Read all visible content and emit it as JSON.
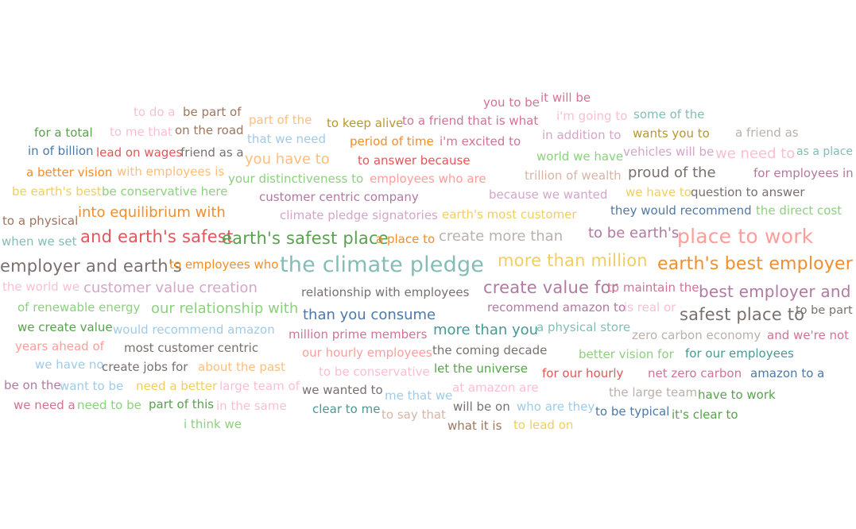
{
  "chart_data": {
    "type": "wordcloud",
    "title": "",
    "palette": {
      "blue": "#4e79a7",
      "lightblue": "#a0cbe8",
      "orange": "#f28e2b",
      "lightorange": "#ffbe7d",
      "green": "#59a14f",
      "lightgreen": "#8cd17d",
      "gold": "#b6992d",
      "yellow": "#f1ce63",
      "teal": "#499894",
      "lightteal": "#86bcb6",
      "red": "#e15759",
      "pink": "#ff9d9a",
      "gray": "#79706e",
      "lightgray": "#bab0ac",
      "rose": "#d37295",
      "lightrose": "#fabfd2",
      "purple": "#b07aa1",
      "lavender": "#d4a6c8",
      "brown": "#9d7660",
      "tan": "#d7b5a6"
    },
    "words": [
      {
        "text": "you to be",
        "weight": 1,
        "color": "rose"
      },
      {
        "text": "it will be",
        "weight": 1,
        "color": "rose"
      },
      {
        "text": "to do a",
        "weight": 1,
        "color": "lightrose"
      },
      {
        "text": "be part of",
        "weight": 1,
        "color": "brown"
      },
      {
        "text": "part of the",
        "weight": 1,
        "color": "lightorange"
      },
      {
        "text": "to keep alive",
        "weight": 1,
        "color": "gold"
      },
      {
        "text": "to a friend that is what",
        "weight": 1,
        "color": "rose"
      },
      {
        "text": "i'm going to",
        "weight": 1,
        "color": "lightrose"
      },
      {
        "text": "some of the",
        "weight": 1,
        "color": "lightteal"
      },
      {
        "text": "for a total",
        "weight": 1,
        "color": "green"
      },
      {
        "text": "to me that",
        "weight": 1,
        "color": "lightrose"
      },
      {
        "text": "on the road",
        "weight": 1,
        "color": "brown"
      },
      {
        "text": "that we need",
        "weight": 1,
        "color": "lightblue"
      },
      {
        "text": "period of time",
        "weight": 1,
        "color": "orange"
      },
      {
        "text": "i'm excited to",
        "weight": 1,
        "color": "rose"
      },
      {
        "text": "in addition to",
        "weight": 1,
        "color": "lavender"
      },
      {
        "text": "wants you to",
        "weight": 1,
        "color": "gold"
      },
      {
        "text": "a friend as",
        "weight": 1,
        "color": "lightgray"
      },
      {
        "text": "in of billion",
        "weight": 1,
        "color": "blue"
      },
      {
        "text": "lead on wages",
        "weight": 1,
        "color": "red"
      },
      {
        "text": "friend as a",
        "weight": 1,
        "color": "gray"
      },
      {
        "text": "you have to",
        "weight": 2,
        "color": "lightorange"
      },
      {
        "text": "to answer because",
        "weight": 1,
        "color": "red"
      },
      {
        "text": "world we have",
        "weight": 1,
        "color": "lightgreen"
      },
      {
        "text": "vehicles will be",
        "weight": 1,
        "color": "lavender"
      },
      {
        "text": "we need to",
        "weight": 2,
        "color": "lightrose"
      },
      {
        "text": "as a place",
        "weight": 1,
        "color": "lightteal"
      },
      {
        "text": "a better vision",
        "weight": 1,
        "color": "orange"
      },
      {
        "text": "with employees is",
        "weight": 1,
        "color": "lightorange"
      },
      {
        "text": "your distinctiveness to",
        "weight": 1,
        "color": "lightgreen"
      },
      {
        "text": "employees who are",
        "weight": 1,
        "color": "pink"
      },
      {
        "text": "trillion of wealth",
        "weight": 1,
        "color": "tan"
      },
      {
        "text": "proud of the",
        "weight": 2,
        "color": "gray"
      },
      {
        "text": "for employees in",
        "weight": 1,
        "color": "purple"
      },
      {
        "text": "be earth's best",
        "weight": 1,
        "color": "yellow"
      },
      {
        "text": "be conservative here",
        "weight": 1,
        "color": "lightgreen"
      },
      {
        "text": "customer centric company",
        "weight": 1,
        "color": "purple"
      },
      {
        "text": "because we wanted",
        "weight": 1,
        "color": "lavender"
      },
      {
        "text": "we have to",
        "weight": 1,
        "color": "yellow"
      },
      {
        "text": "question to answer",
        "weight": 1,
        "color": "gray"
      },
      {
        "text": "to a physical",
        "weight": 1,
        "color": "brown"
      },
      {
        "text": "into equilibrium with",
        "weight": 2,
        "color": "orange"
      },
      {
        "text": "climate pledge signatories",
        "weight": 1,
        "color": "lavender"
      },
      {
        "text": "earth's most customer",
        "weight": 1,
        "color": "yellow"
      },
      {
        "text": "they would recommend",
        "weight": 1,
        "color": "blue"
      },
      {
        "text": "the direct cost",
        "weight": 1,
        "color": "lightgreen"
      },
      {
        "text": "when we set",
        "weight": 1,
        "color": "lightteal"
      },
      {
        "text": "and earth's safest",
        "weight": 3,
        "color": "red"
      },
      {
        "text": "earth's safest place",
        "weight": 3,
        "color": "green"
      },
      {
        "text": "a place to",
        "weight": 1,
        "color": "orange"
      },
      {
        "text": "create more than",
        "weight": 2,
        "color": "lightgray"
      },
      {
        "text": "to be earth's",
        "weight": 2,
        "color": "purple"
      },
      {
        "text": "place to work",
        "weight": 4,
        "color": "pink"
      },
      {
        "text": "employer and earth's",
        "weight": 3,
        "color": "gray"
      },
      {
        "text": "to employees who",
        "weight": 1,
        "color": "orange"
      },
      {
        "text": "the climate pledge",
        "weight": 5,
        "color": "lightteal"
      },
      {
        "text": "more than million",
        "weight": 3,
        "color": "yellow"
      },
      {
        "text": "earth's best employer",
        "weight": 4,
        "color": "orange"
      },
      {
        "text": "the world we",
        "weight": 1,
        "color": "lightrose"
      },
      {
        "text": "customer value creation",
        "weight": 2,
        "color": "lavender"
      },
      {
        "text": "relationship with employees",
        "weight": 1,
        "color": "gray"
      },
      {
        "text": "create value for",
        "weight": 3,
        "color": "purple"
      },
      {
        "text": "to maintain the",
        "weight": 1,
        "color": "rose"
      },
      {
        "text": "best employer and",
        "weight": 3,
        "color": "purple"
      },
      {
        "text": "of renewable energy",
        "weight": 1,
        "color": "lightgreen"
      },
      {
        "text": "our relationship with",
        "weight": 2,
        "color": "lightgreen"
      },
      {
        "text": "than you consume",
        "weight": 2,
        "color": "blue"
      },
      {
        "text": "recommend amazon to",
        "weight": 1,
        "color": "purple"
      },
      {
        "text": "is real or",
        "weight": 1,
        "color": "lightrose"
      },
      {
        "text": "safest place to",
        "weight": 3,
        "color": "gray"
      },
      {
        "text": "to be part",
        "weight": 1,
        "color": "gray"
      },
      {
        "text": "we create value",
        "weight": 1,
        "color": "green"
      },
      {
        "text": "would recommend amazon",
        "weight": 1,
        "color": "lightblue"
      },
      {
        "text": "million prime members",
        "weight": 1,
        "color": "rose"
      },
      {
        "text": "more than you",
        "weight": 2,
        "color": "teal"
      },
      {
        "text": "a physical store",
        "weight": 1,
        "color": "lightteal"
      },
      {
        "text": "zero carbon economy",
        "weight": 1,
        "color": "lightgray"
      },
      {
        "text": "and we're not",
        "weight": 1,
        "color": "rose"
      },
      {
        "text": "years ahead of",
        "weight": 1,
        "color": "pink"
      },
      {
        "text": "most customer centric",
        "weight": 1,
        "color": "gray"
      },
      {
        "text": "our hourly employees",
        "weight": 1,
        "color": "pink"
      },
      {
        "text": "the coming decade",
        "weight": 1,
        "color": "gray"
      },
      {
        "text": "better vision for",
        "weight": 1,
        "color": "lightgreen"
      },
      {
        "text": "for our employees",
        "weight": 1,
        "color": "teal"
      },
      {
        "text": "we have no",
        "weight": 1,
        "color": "lightblue"
      },
      {
        "text": "create jobs for",
        "weight": 1,
        "color": "gray"
      },
      {
        "text": "about the past",
        "weight": 1,
        "color": "lightorange"
      },
      {
        "text": "to be conservative",
        "weight": 1,
        "color": "lightrose"
      },
      {
        "text": "let the universe",
        "weight": 1,
        "color": "green"
      },
      {
        "text": "for our hourly",
        "weight": 1,
        "color": "red"
      },
      {
        "text": "net zero carbon",
        "weight": 1,
        "color": "rose"
      },
      {
        "text": "amazon to a",
        "weight": 1,
        "color": "blue"
      },
      {
        "text": "be on the",
        "weight": 1,
        "color": "purple"
      },
      {
        "text": "want to be",
        "weight": 1,
        "color": "lightblue"
      },
      {
        "text": "need a better",
        "weight": 1,
        "color": "yellow"
      },
      {
        "text": "large team of",
        "weight": 1,
        "color": "lightrose"
      },
      {
        "text": "we wanted to",
        "weight": 1,
        "color": "gray"
      },
      {
        "text": "me that we",
        "weight": 1,
        "color": "lightblue"
      },
      {
        "text": "at amazon are",
        "weight": 1,
        "color": "lightrose"
      },
      {
        "text": "the large team",
        "weight": 1,
        "color": "lightgray"
      },
      {
        "text": "have to work",
        "weight": 1,
        "color": "green"
      },
      {
        "text": "we need a",
        "weight": 1,
        "color": "rose"
      },
      {
        "text": "need to be",
        "weight": 1,
        "color": "lightgreen"
      },
      {
        "text": "part of this",
        "weight": 1,
        "color": "green"
      },
      {
        "text": "in the same",
        "weight": 1,
        "color": "lightrose"
      },
      {
        "text": "clear to me",
        "weight": 1,
        "color": "teal"
      },
      {
        "text": "to say that",
        "weight": 1,
        "color": "tan"
      },
      {
        "text": "will be on",
        "weight": 1,
        "color": "gray"
      },
      {
        "text": "who are they",
        "weight": 1,
        "color": "lightblue"
      },
      {
        "text": "to be typical",
        "weight": 1,
        "color": "blue"
      },
      {
        "text": "it's clear to",
        "weight": 1,
        "color": "green"
      },
      {
        "text": "i think we",
        "weight": 1,
        "color": "lightgreen"
      },
      {
        "text": "what it is",
        "weight": 1,
        "color": "brown"
      },
      {
        "text": "to lead on",
        "weight": 1,
        "color": "yellow"
      }
    ]
  }
}
